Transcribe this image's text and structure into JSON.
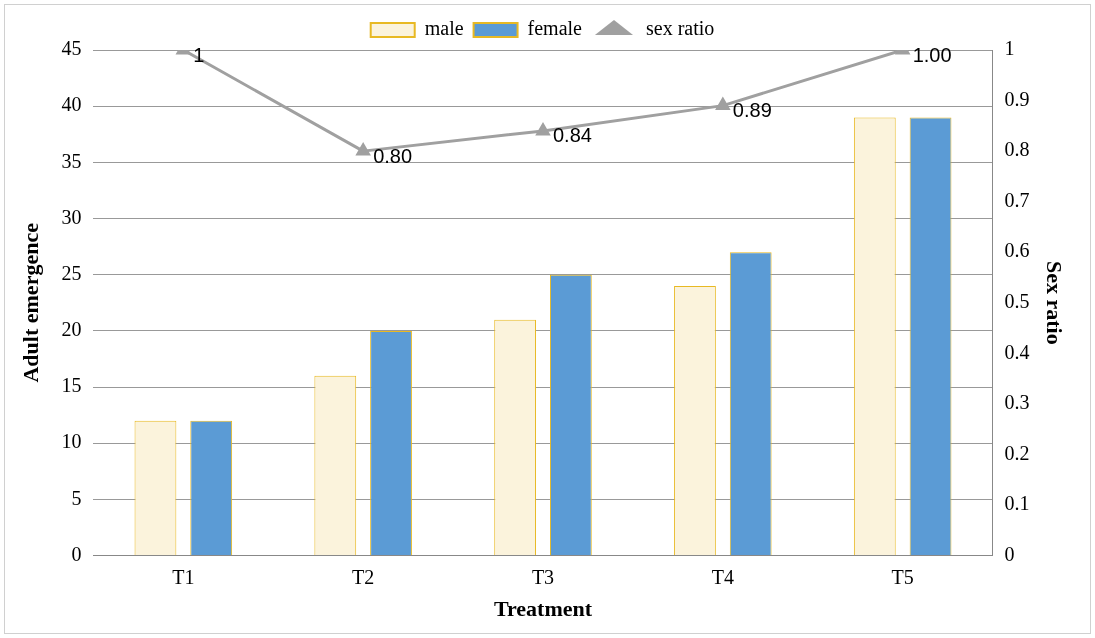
{
  "chart_data": {
    "type": "bar",
    "xlabel": "Treatment",
    "ylabel": "Adult emergence",
    "y2label": "Sex ratio",
    "categories": [
      "T1",
      "T2",
      "T3",
      "T4",
      "T5"
    ],
    "series": [
      {
        "name": "male",
        "color": "#fbf3dc",
        "values": [
          12,
          16,
          21,
          24,
          39
        ]
      },
      {
        "name": "female",
        "color": "#5b9bd5",
        "values": [
          12,
          20,
          25,
          27,
          39
        ]
      },
      {
        "name": "sex ratio",
        "type": "line",
        "axis": "y2",
        "color": "#a0a0a0",
        "marker": "triangle",
        "values": [
          1,
          0.8,
          0.84,
          0.89,
          1.0
        ],
        "value_labels": [
          "1",
          "0.80",
          "0.84",
          "0.89",
          "1.00"
        ]
      }
    ],
    "ylim": [
      0,
      45
    ],
    "yticks": [
      0,
      5,
      10,
      15,
      20,
      25,
      30,
      35,
      40,
      45
    ],
    "y2lim": [
      0,
      1
    ],
    "y2ticks": [
      0,
      0.1,
      0.2,
      0.3,
      0.4,
      0.5,
      0.6,
      0.7,
      0.8,
      0.9,
      1
    ],
    "grid": "y",
    "legend": "top"
  }
}
